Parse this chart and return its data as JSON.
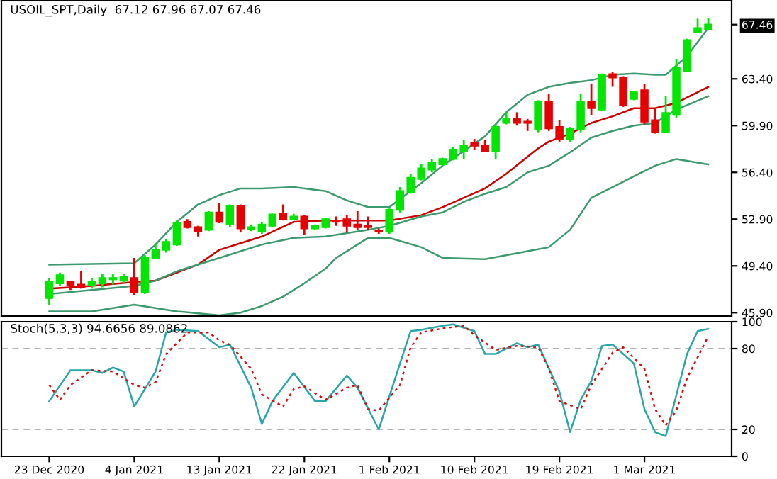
{
  "chart_data": [
    {
      "type": "candlestick",
      "title": "USOIL_SPT,Daily  67.12 67.96 67.07 67.46",
      "ohlc": [
        [
          47.0,
          48.5,
          46.5,
          48.2
        ],
        [
          48.1,
          48.9,
          47.9,
          48.7
        ],
        [
          48.2,
          48.3,
          47.6,
          47.95
        ],
        [
          48.0,
          49.0,
          47.7,
          47.8
        ],
        [
          47.95,
          48.5,
          47.7,
          48.2
        ],
        [
          48.1,
          48.8,
          47.8,
          48.5
        ],
        [
          48.4,
          48.8,
          48.0,
          48.5
        ],
        [
          48.3,
          48.8,
          48.1,
          48.6
        ],
        [
          48.5,
          50.0,
          47.2,
          47.4
        ],
        [
          47.4,
          50.2,
          47.3,
          50.0
        ],
        [
          50.0,
          51.1,
          49.9,
          50.6
        ],
        [
          50.6,
          51.4,
          50.4,
          51.2
        ],
        [
          51.0,
          52.8,
          50.9,
          52.6
        ],
        [
          52.7,
          52.9,
          52.2,
          52.3
        ],
        [
          52.3,
          52.4,
          51.6,
          52.0
        ],
        [
          52.1,
          53.5,
          52.0,
          53.4
        ],
        [
          53.4,
          54.1,
          52.6,
          52.7
        ],
        [
          52.5,
          54.0,
          52.3,
          53.9
        ],
        [
          53.9,
          54.0,
          51.9,
          52.2
        ],
        [
          52.15,
          52.5,
          52.0,
          52.3
        ],
        [
          52.0,
          52.7,
          51.8,
          52.5
        ],
        [
          52.4,
          53.3,
          52.3,
          53.25
        ],
        [
          53.3,
          54.0,
          52.8,
          52.9
        ],
        [
          52.9,
          53.3,
          52.8,
          53.1
        ],
        [
          53.1,
          53.2,
          51.7,
          52.2
        ],
        [
          52.2,
          52.5,
          52.1,
          52.4
        ],
        [
          52.3,
          53.0,
          52.2,
          52.9
        ],
        [
          52.8,
          53.1,
          52.4,
          52.7
        ],
        [
          52.9,
          53.2,
          51.9,
          52.4
        ],
        [
          52.5,
          53.5,
          52.1,
          52.3
        ],
        [
          52.4,
          53.1,
          52.1,
          52.3
        ],
        [
          52.05,
          52.2,
          51.8,
          52.0
        ],
        [
          52.0,
          53.7,
          51.8,
          53.6
        ],
        [
          53.6,
          55.3,
          53.4,
          55.0
        ],
        [
          54.9,
          56.3,
          54.8,
          56.0
        ],
        [
          55.9,
          57.0,
          55.8,
          56.7
        ],
        [
          56.6,
          57.4,
          56.4,
          57.15
        ],
        [
          57.0,
          57.5,
          56.9,
          57.4
        ],
        [
          57.4,
          58.3,
          57.3,
          58.1
        ],
        [
          58.0,
          58.8,
          57.4,
          58.4
        ],
        [
          58.6,
          58.9,
          58.1,
          58.4
        ],
        [
          58.4,
          58.8,
          57.9,
          58.0
        ],
        [
          58.0,
          60.0,
          57.4,
          59.8
        ],
        [
          60.1,
          60.9,
          60.0,
          60.4
        ],
        [
          60.4,
          60.9,
          59.9,
          60.1
        ],
        [
          60.2,
          60.4,
          59.5,
          60.1
        ],
        [
          59.6,
          61.8,
          59.4,
          61.7
        ],
        [
          61.7,
          62.3,
          59.5,
          59.7
        ],
        [
          59.8,
          60.3,
          58.7,
          58.9
        ],
        [
          58.9,
          59.8,
          58.7,
          59.7
        ],
        [
          59.6,
          62.3,
          59.4,
          61.7
        ],
        [
          61.7,
          63.05,
          60.7,
          61.2
        ],
        [
          61.1,
          63.8,
          61.0,
          63.7
        ],
        [
          63.75,
          63.9,
          62.8,
          63.5
        ],
        [
          63.5,
          63.6,
          61.3,
          61.4
        ],
        [
          61.9,
          62.5,
          61.8,
          62.45
        ],
        [
          62.55,
          63.0,
          60.0,
          60.2
        ],
        [
          60.3,
          61.2,
          59.3,
          59.4
        ],
        [
          59.4,
          62.1,
          59.4,
          60.85
        ],
        [
          60.7,
          64.9,
          60.5,
          64.2
        ],
        [
          64.0,
          66.4,
          63.9,
          66.3
        ],
        [
          66.9,
          67.9,
          66.8,
          67.2
        ],
        [
          67.12,
          67.96,
          67.07,
          67.46
        ]
      ],
      "colors": [
        "#00e600",
        "#00e600",
        "#e60000",
        "#e60000",
        "#00e600",
        "#00e600",
        "#00e600",
        "#00e600",
        "#e60000",
        "#00e600",
        "#00e600",
        "#00e600",
        "#00e600",
        "#e60000",
        "#e60000",
        "#00e600",
        "#e60000",
        "#00e600",
        "#e60000",
        "#00e600",
        "#00e600",
        "#00e600",
        "#e60000",
        "#00e600",
        "#e60000",
        "#00e600",
        "#00e600",
        "#e60000",
        "#e60000",
        "#e60000",
        "#e60000",
        "#e60000",
        "#00e600",
        "#00e600",
        "#00e600",
        "#00e600",
        "#00e600",
        "#00e600",
        "#00e600",
        "#00e600",
        "#e60000",
        "#e60000",
        "#00e600",
        "#00e600",
        "#e60000",
        "#e60000",
        "#00e600",
        "#e60000",
        "#e60000",
        "#00e600",
        "#00e600",
        "#e60000",
        "#00e600",
        "#e60000",
        "#e60000",
        "#00e600",
        "#e60000",
        "#e60000",
        "#00e600",
        "#00e600",
        "#00e600",
        "#00e600",
        "#00e600"
      ],
      "series": [
        {
          "type": "line",
          "color": "#3c9a6e",
          "values": [
            49.5,
            null,
            null,
            null,
            null,
            null,
            null,
            null,
            49.6,
            null,
            51.0,
            null,
            52.7,
            null,
            54.0,
            null,
            54.7,
            null,
            55.2,
            null,
            55.2,
            null,
            null,
            55.3,
            null,
            null,
            55.0,
            null,
            54.3,
            null,
            53.8,
            null,
            53.8,
            null,
            null,
            55.6,
            null,
            56.9,
            null,
            58.0,
            null,
            59.1,
            null,
            60.9,
            null,
            62.2,
            null,
            62.8,
            null,
            63.1,
            null,
            63.3,
            null,
            63.7,
            null,
            63.8,
            null,
            63.7,
            63.7,
            null,
            65.1,
            null,
            67.2
          ]
        },
        {
          "type": "line",
          "color": "#cc0000",
          "values": [
            47.7,
            null,
            null,
            null,
            47.9,
            null,
            null,
            null,
            48.2,
            null,
            48.3,
            null,
            48.9,
            null,
            49.5,
            null,
            50.6,
            null,
            51.1,
            null,
            51.6,
            null,
            null,
            52.7,
            null,
            null,
            52.8,
            null,
            null,
            null,
            52.8,
            null,
            52.8,
            null,
            null,
            53.2,
            null,
            53.8,
            null,
            54.5,
            null,
            55.2,
            null,
            56.3,
            null,
            null,
            58.2,
            58.7,
            null,
            59.3,
            null,
            60.1,
            null,
            60.6,
            null,
            61.2,
            null,
            61.2,
            null,
            61.6,
            null,
            null,
            62.8
          ]
        },
        {
          "type": "line",
          "color": "#3c9a6e",
          "values": [
            47.3,
            null,
            null,
            null,
            47.6,
            null,
            null,
            null,
            47.9,
            null,
            48.3,
            null,
            49.0,
            null,
            null,
            null,
            50.0,
            null,
            null,
            null,
            51.0,
            null,
            null,
            51.5,
            null,
            null,
            51.6,
            null,
            null,
            null,
            52.1,
            null,
            52.4,
            null,
            null,
            53.1,
            null,
            53.4,
            null,
            54.2,
            null,
            54.8,
            null,
            55.3,
            null,
            56.4,
            null,
            56.9,
            null,
            57.9,
            null,
            59.0,
            null,
            59.5,
            null,
            59.9,
            null,
            60.1,
            null,
            61.1,
            null,
            null,
            62.1
          ]
        },
        {
          "type": "line",
          "color": "#3c9a6e",
          "values": [
            46.0,
            null,
            null,
            null,
            46.0,
            null,
            null,
            null,
            46.5,
            null,
            null,
            null,
            46.0,
            null,
            null,
            null,
            45.7,
            null,
            45.9,
            null,
            46.4,
            null,
            47.1,
            null,
            48.1,
            null,
            49.2,
            50.0,
            null,
            null,
            51.5,
            null,
            51.5,
            null,
            null,
            50.8,
            null,
            50.0,
            null,
            null,
            null,
            49.9,
            null,
            null,
            null,
            50.5,
            null,
            50.8,
            null,
            52.1,
            null,
            54.5,
            null,
            55.3,
            null,
            56.1,
            null,
            56.9,
            null,
            57.4,
            null,
            null,
            57.0
          ]
        }
      ],
      "ylim": [
        45.65,
        69.3
      ],
      "yticks": [
        {
          "value": 45.9,
          "label": "45.90"
        },
        {
          "value": 49.4,
          "label": "49.40"
        },
        {
          "value": 52.9,
          "label": "52.90"
        },
        {
          "value": 56.4,
          "label": "56.40"
        },
        {
          "value": 59.9,
          "label": "59.90"
        },
        {
          "value": 63.4,
          "label": "63.40"
        },
        {
          "value": 67.46,
          "label": "67.46"
        }
      ],
      "tick_labels": "y"
    },
    {
      "type": "line",
      "title": "Stoch(5,3,3) 94.6656 89.0862",
      "categories": [
        "23 Dec 2020",
        null,
        null,
        null,
        null,
        null,
        null,
        null,
        "4 Jan 2021",
        null,
        null,
        null,
        null,
        null,
        null,
        null,
        "13 Jan 2021",
        null,
        null,
        null,
        null,
        null,
        null,
        null,
        "22 Jan 2021",
        null,
        null,
        null,
        null,
        null,
        null,
        null,
        "1 Feb 2021",
        null,
        null,
        null,
        null,
        null,
        null,
        null,
        "10 Feb 2021",
        null,
        null,
        null,
        null,
        null,
        null,
        null,
        "19 Feb 2021",
        null,
        null,
        null,
        null,
        null,
        null,
        null,
        "1 Mar 2021",
        null,
        null,
        null,
        null,
        null,
        null
      ],
      "series": [
        {
          "color": "#2aa6a6",
          "values": [
            41,
            null,
            64,
            null,
            64,
            62,
            66,
            63,
            37,
            null,
            63,
            92,
            94,
            null,
            93,
            null,
            81,
            83,
            67,
            51,
            24,
            41,
            null,
            62,
            null,
            41,
            41,
            null,
            60,
            51,
            null,
            20,
            null,
            69,
            93,
            94,
            null,
            97,
            98,
            null,
            93,
            76,
            76,
            null,
            84,
            81,
            83,
            null,
            48,
            18,
            42,
            56,
            82,
            83,
            null,
            69,
            35,
            18,
            15,
            null,
            76,
            93,
            94.6656
          ]
        },
        {
          "color": "#d01010",
          "line_style": "dotted",
          "values": [
            53,
            42,
            53,
            null,
            64,
            null,
            63,
            null,
            53,
            51,
            55,
            76,
            null,
            92,
            null,
            92,
            86,
            83,
            null,
            65,
            46,
            null,
            37,
            50,
            52,
            null,
            42,
            null,
            51,
            53,
            35,
            34,
            null,
            53,
            81,
            92,
            null,
            95,
            null,
            97,
            90,
            null,
            79,
            null,
            82,
            null,
            81,
            65,
            41,
            null,
            35,
            53,
            null,
            77,
            81,
            null,
            65,
            35,
            23,
            34,
            58,
            null,
            89.0862
          ]
        }
      ],
      "ylim": [
        0,
        100
      ],
      "yticks": [
        0,
        20,
        80,
        100
      ],
      "ref_lines": [
        {
          "axis": "y",
          "value": 20,
          "color": "#b4b4b4",
          "line_style": "dashed"
        },
        {
          "axis": "y",
          "value": 80,
          "color": "#b4b4b4",
          "line_style": "dashed"
        }
      ]
    }
  ]
}
